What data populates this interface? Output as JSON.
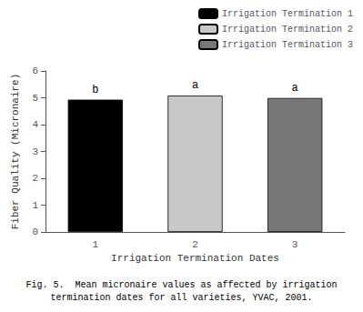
{
  "chart_data": {
    "type": "bar",
    "categories": [
      "1",
      "2",
      "3"
    ],
    "series": [
      {
        "name": "Irrigation Termination 1",
        "color": "#000000",
        "values": [
          4.93,
          null,
          null
        ]
      },
      {
        "name": "Irrigation Termination 2",
        "color": "#c8c8c8",
        "values": [
          null,
          5.08,
          null
        ]
      },
      {
        "name": "Irrigation Termination 3",
        "color": "#787878",
        "values": [
          null,
          null,
          4.99
        ]
      }
    ],
    "annotations": [
      {
        "x": "1",
        "text": "b"
      },
      {
        "x": "2",
        "text": "a"
      },
      {
        "x": "3",
        "text": "a"
      }
    ],
    "xlabel": "Irrigation Termination Dates",
    "ylabel": "Fiber Quality (Micronaire)",
    "caption": [
      "Fig. 5.  Mean micronaire values as affected by irrigation",
      "termination dates for all varieties, YVAC, 2001."
    ],
    "ylim": [
      0,
      6
    ],
    "yticks": [
      0,
      1,
      2,
      3,
      4,
      5,
      6
    ],
    "grid": false,
    "legend": "upper right"
  }
}
